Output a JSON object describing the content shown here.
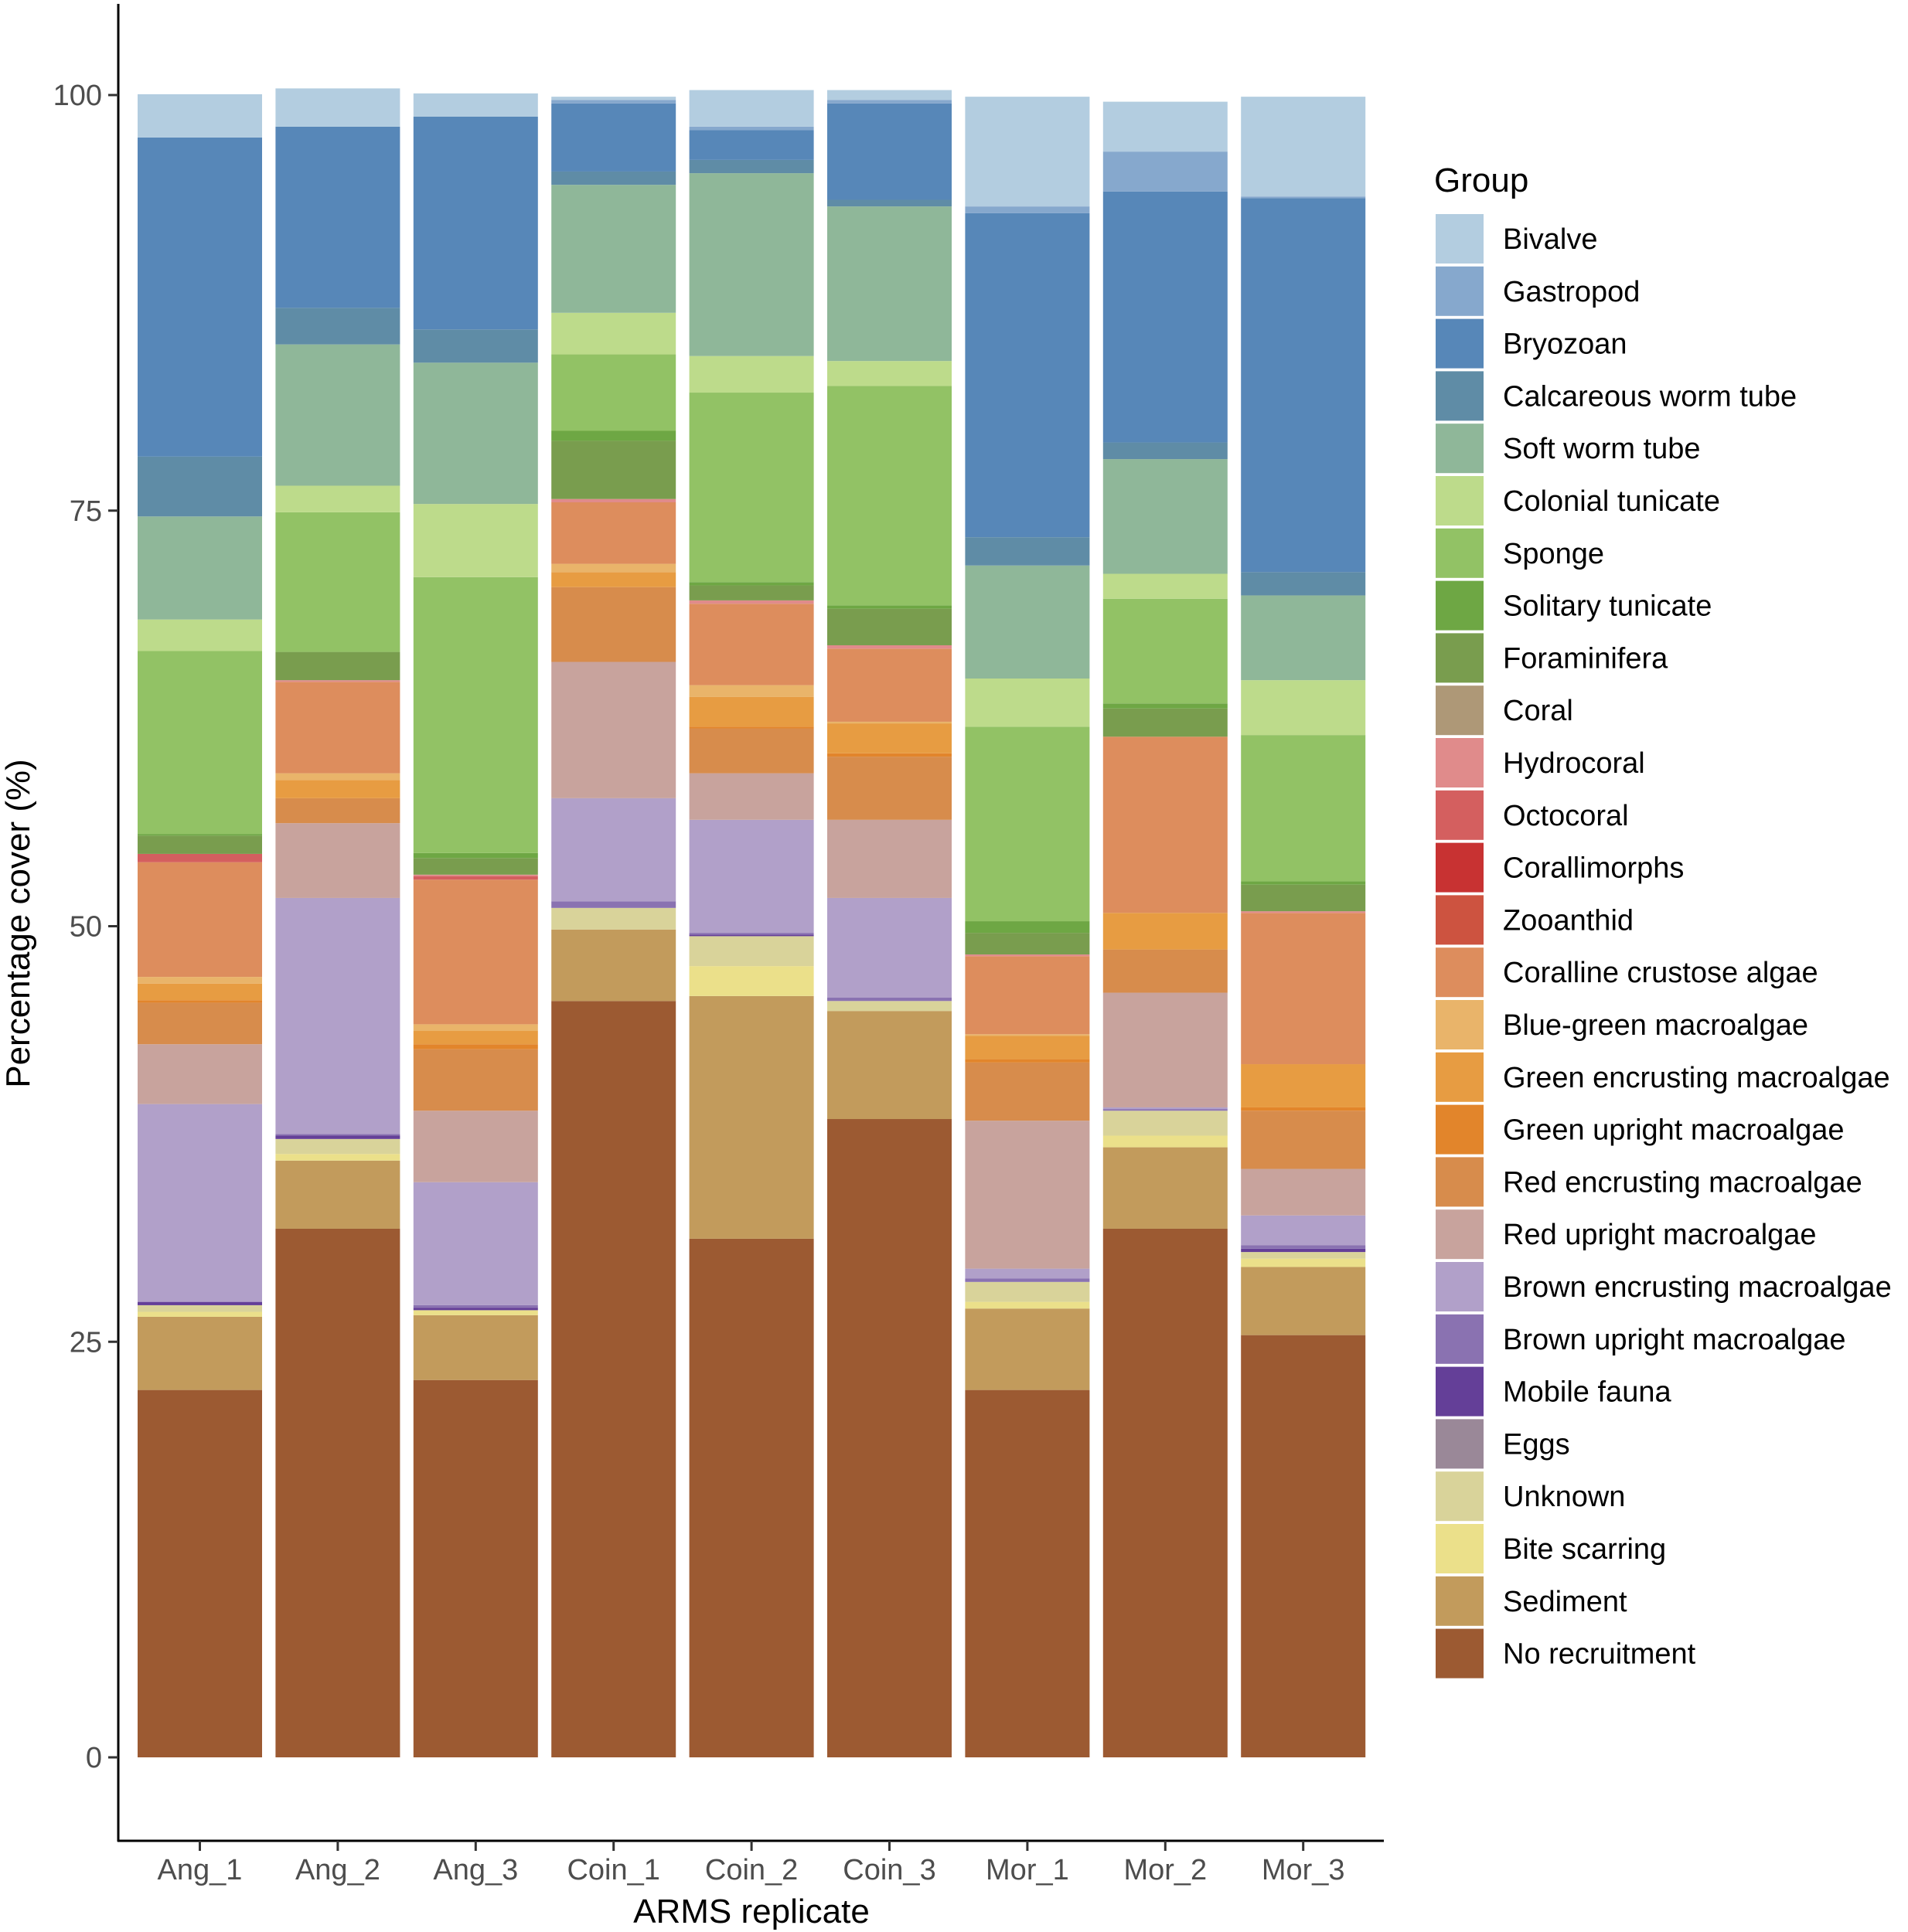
{
  "chart_data": {
    "type": "bar",
    "stacked": true,
    "xlabel": "ARMS replicate",
    "ylabel": "Percentage cover (%)",
    "ylim": [
      0,
      105
    ],
    "yticks": [
      0,
      25,
      50,
      75,
      100
    ],
    "categories": [
      "Ang_1",
      "Ang_2",
      "Ang_3",
      "Coin_1",
      "Coin_2",
      "Coin_3",
      "Mor_1",
      "Mor_2",
      "Mor_3"
    ],
    "legend_title": "Group",
    "legend_position": "right",
    "series": [
      {
        "name": "Bivalve",
        "color": "#b3cde0",
        "values": [
          2.6,
          2.3,
          1.4,
          0.2,
          2.2,
          0.6,
          6.6,
          3.0,
          6.0
        ]
      },
      {
        "name": "Gastropod",
        "color": "#86a8cd",
        "values": [
          0,
          0,
          0,
          0.2,
          0.2,
          0.2,
          0.4,
          2.4,
          0.1
        ]
      },
      {
        "name": "Bryozoan",
        "color": "#5787b8",
        "values": [
          19.2,
          10.9,
          12.8,
          4.1,
          1.8,
          5.8,
          19.5,
          15.1,
          22.5
        ]
      },
      {
        "name": "Calcareous worm tube",
        "color": "#5f8ca6",
        "values": [
          3.6,
          2.2,
          2.0,
          0.8,
          0.8,
          0.4,
          1.7,
          1.0,
          1.4
        ]
      },
      {
        "name": "Soft worm tube",
        "color": "#8fb799",
        "values": [
          6.2,
          8.5,
          8.5,
          7.7,
          11.0,
          9.3,
          6.8,
          6.9,
          5.1
        ]
      },
      {
        "name": "Colonial tunicate",
        "color": "#bddb8b",
        "values": [
          1.9,
          1.6,
          4.4,
          2.5,
          2.2,
          1.5,
          2.9,
          1.5,
          3.3
        ]
      },
      {
        "name": "Sponge",
        "color": "#92c265",
        "values": [
          11.0,
          8.4,
          16.6,
          4.6,
          11.4,
          13.2,
          11.7,
          6.3,
          8.8
        ]
      },
      {
        "name": "Solitary tunicate",
        "color": "#6ea744",
        "values": [
          0.1,
          0,
          0.3,
          0.6,
          0.2,
          0.2,
          0.7,
          0.3,
          0.2
        ]
      },
      {
        "name": "Foraminifera",
        "color": "#799d4e",
        "values": [
          1.1,
          1.7,
          1.0,
          3.5,
          0.9,
          2.2,
          1.3,
          1.7,
          1.6
        ]
      },
      {
        "name": "Coral",
        "color": "#ae9877",
        "values": [
          0,
          0,
          0,
          0,
          0,
          0,
          0,
          0,
          0
        ]
      },
      {
        "name": "Hydrocoral",
        "color": "#e08b8b",
        "values": [
          0,
          0.1,
          0.1,
          0.2,
          0.2,
          0.2,
          0.1,
          0,
          0.1
        ]
      },
      {
        "name": "Octocoral",
        "color": "#d45f5f",
        "values": [
          0.5,
          0,
          0.2,
          0,
          0,
          0,
          0,
          0,
          0
        ]
      },
      {
        "name": "Corallimorphs",
        "color": "#c83232",
        "values": [
          0,
          0,
          0,
          0,
          0,
          0,
          0,
          0,
          0
        ]
      },
      {
        "name": "Zooanthid",
        "color": "#cd5340",
        "values": [
          0,
          0,
          0,
          0,
          0,
          0,
          0,
          0,
          0
        ]
      },
      {
        "name": "Coralline crustose algae",
        "color": "#dd8d5d",
        "values": [
          6.9,
          5.5,
          8.7,
          3.7,
          4.9,
          4.4,
          4.7,
          10.6,
          9.1
        ]
      },
      {
        "name": "Blue-green macroalgae",
        "color": "#e9b46a",
        "values": [
          0.4,
          0.4,
          0.4,
          0.5,
          0.7,
          0.1,
          0.1,
          0,
          0
        ]
      },
      {
        "name": "Green encrusting macroalgae",
        "color": "#e79c42",
        "values": [
          1.0,
          1.1,
          0.8,
          0.9,
          1.8,
          1.8,
          1.4,
          2.2,
          2.6
        ]
      },
      {
        "name": "Green upright macroalgae",
        "color": "#e2852b",
        "values": [
          0.15,
          0,
          0.3,
          0,
          0.1,
          0.2,
          0.2,
          0,
          0.2
        ]
      },
      {
        "name": "Red encrusting macroalgae",
        "color": "#d78c4c",
        "values": [
          2.5,
          1.5,
          3.7,
          4.5,
          2.7,
          3.8,
          3.5,
          2.6,
          3.5
        ]
      },
      {
        "name": "Red upright macroalgae",
        "color": "#c8a39d",
        "values": [
          3.6,
          4.5,
          4.3,
          8.2,
          2.8,
          4.7,
          8.9,
          6.9,
          2.8
        ]
      },
      {
        "name": "Brown encrusting macroalgae",
        "color": "#b1a0c9",
        "values": [
          11.9,
          14.2,
          7.4,
          6.2,
          6.8,
          6.0,
          0.6,
          0.1,
          1.8
        ]
      },
      {
        "name": "Brown upright macroalgae",
        "color": "#8a72b1",
        "values": [
          0,
          0.1,
          0.15,
          0.4,
          0.1,
          0.2,
          0.2,
          0.1,
          0.2
        ]
      },
      {
        "name": "Mobile fauna",
        "color": "#643f98",
        "values": [
          0.2,
          0.2,
          0.15,
          0,
          0.1,
          0,
          0,
          0,
          0.2
        ]
      },
      {
        "name": "Eggs",
        "color": "#9a8898",
        "values": [
          0,
          0,
          0,
          0,
          0,
          0,
          0,
          0,
          0
        ]
      },
      {
        "name": "Unknown",
        "color": "#d9d39a",
        "values": [
          0.4,
          0.9,
          0,
          1.3,
          1.8,
          0.6,
          1.2,
          1.5,
          0.4
        ]
      },
      {
        "name": "Bite scarring",
        "color": "#ebe08a",
        "values": [
          0.3,
          0.4,
          0.3,
          0,
          1.8,
          0,
          0.4,
          0.7,
          0.5
        ]
      },
      {
        "name": "Sediment",
        "color": "#c29b5c",
        "values": [
          4.4,
          4.1,
          3.9,
          4.3,
          14.6,
          6.5,
          4.9,
          4.9,
          4.1
        ]
      },
      {
        "name": "No recruitment",
        "color": "#9c5a32",
        "values": [
          22.1,
          31.8,
          22.7,
          45.5,
          31.2,
          38.4,
          22.1,
          31.8,
          25.4
        ]
      }
    ]
  }
}
